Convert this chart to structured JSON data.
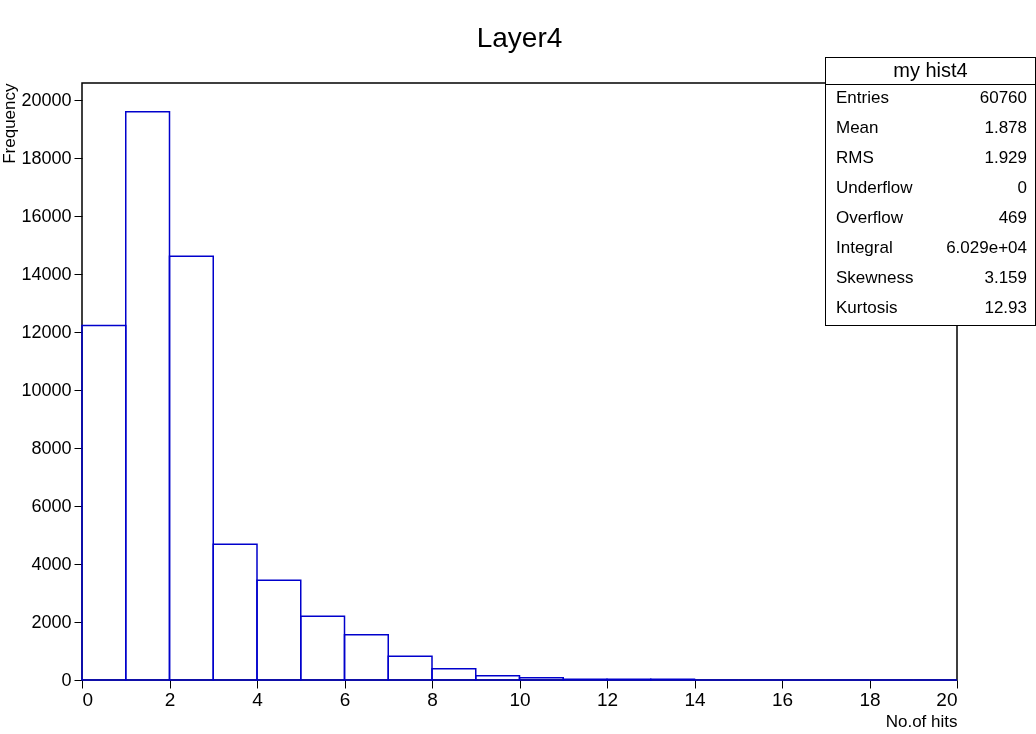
{
  "chart_data": {
    "type": "histogram",
    "title": "Layer4",
    "xlabel": "No.of hits",
    "ylabel": "Frequency",
    "bins": [
      0,
      1,
      2,
      3,
      4,
      5,
      6,
      7,
      8,
      9,
      10,
      11,
      12,
      13,
      14,
      15,
      16,
      17,
      18,
      19,
      20
    ],
    "values": [
      12230,
      19610,
      14620,
      4680,
      3440,
      2200,
      1560,
      820,
      390,
      150,
      80,
      30,
      30,
      30,
      0,
      0,
      0,
      0,
      0,
      0
    ],
    "color": "#0000cc",
    "xlim": [
      0,
      20
    ],
    "xticks": [
      0,
      2,
      4,
      6,
      8,
      10,
      12,
      14,
      16,
      18,
      20
    ],
    "ylim": [
      0,
      20600
    ],
    "yticks": [
      0,
      2000,
      4000,
      6000,
      8000,
      10000,
      12000,
      14000,
      16000,
      18000,
      20000
    ],
    "grid": false,
    "legend": false,
    "annotations": [
      "my hist4",
      "Entries",
      "60760",
      "Mean",
      "1.878",
      "RMS",
      "1.929",
      "Underflow",
      "0",
      "Overflow",
      "469",
      "Integral",
      "6.029e+04",
      "Skewness",
      "3.159",
      "Kurtosis",
      "12.93"
    ]
  }
}
